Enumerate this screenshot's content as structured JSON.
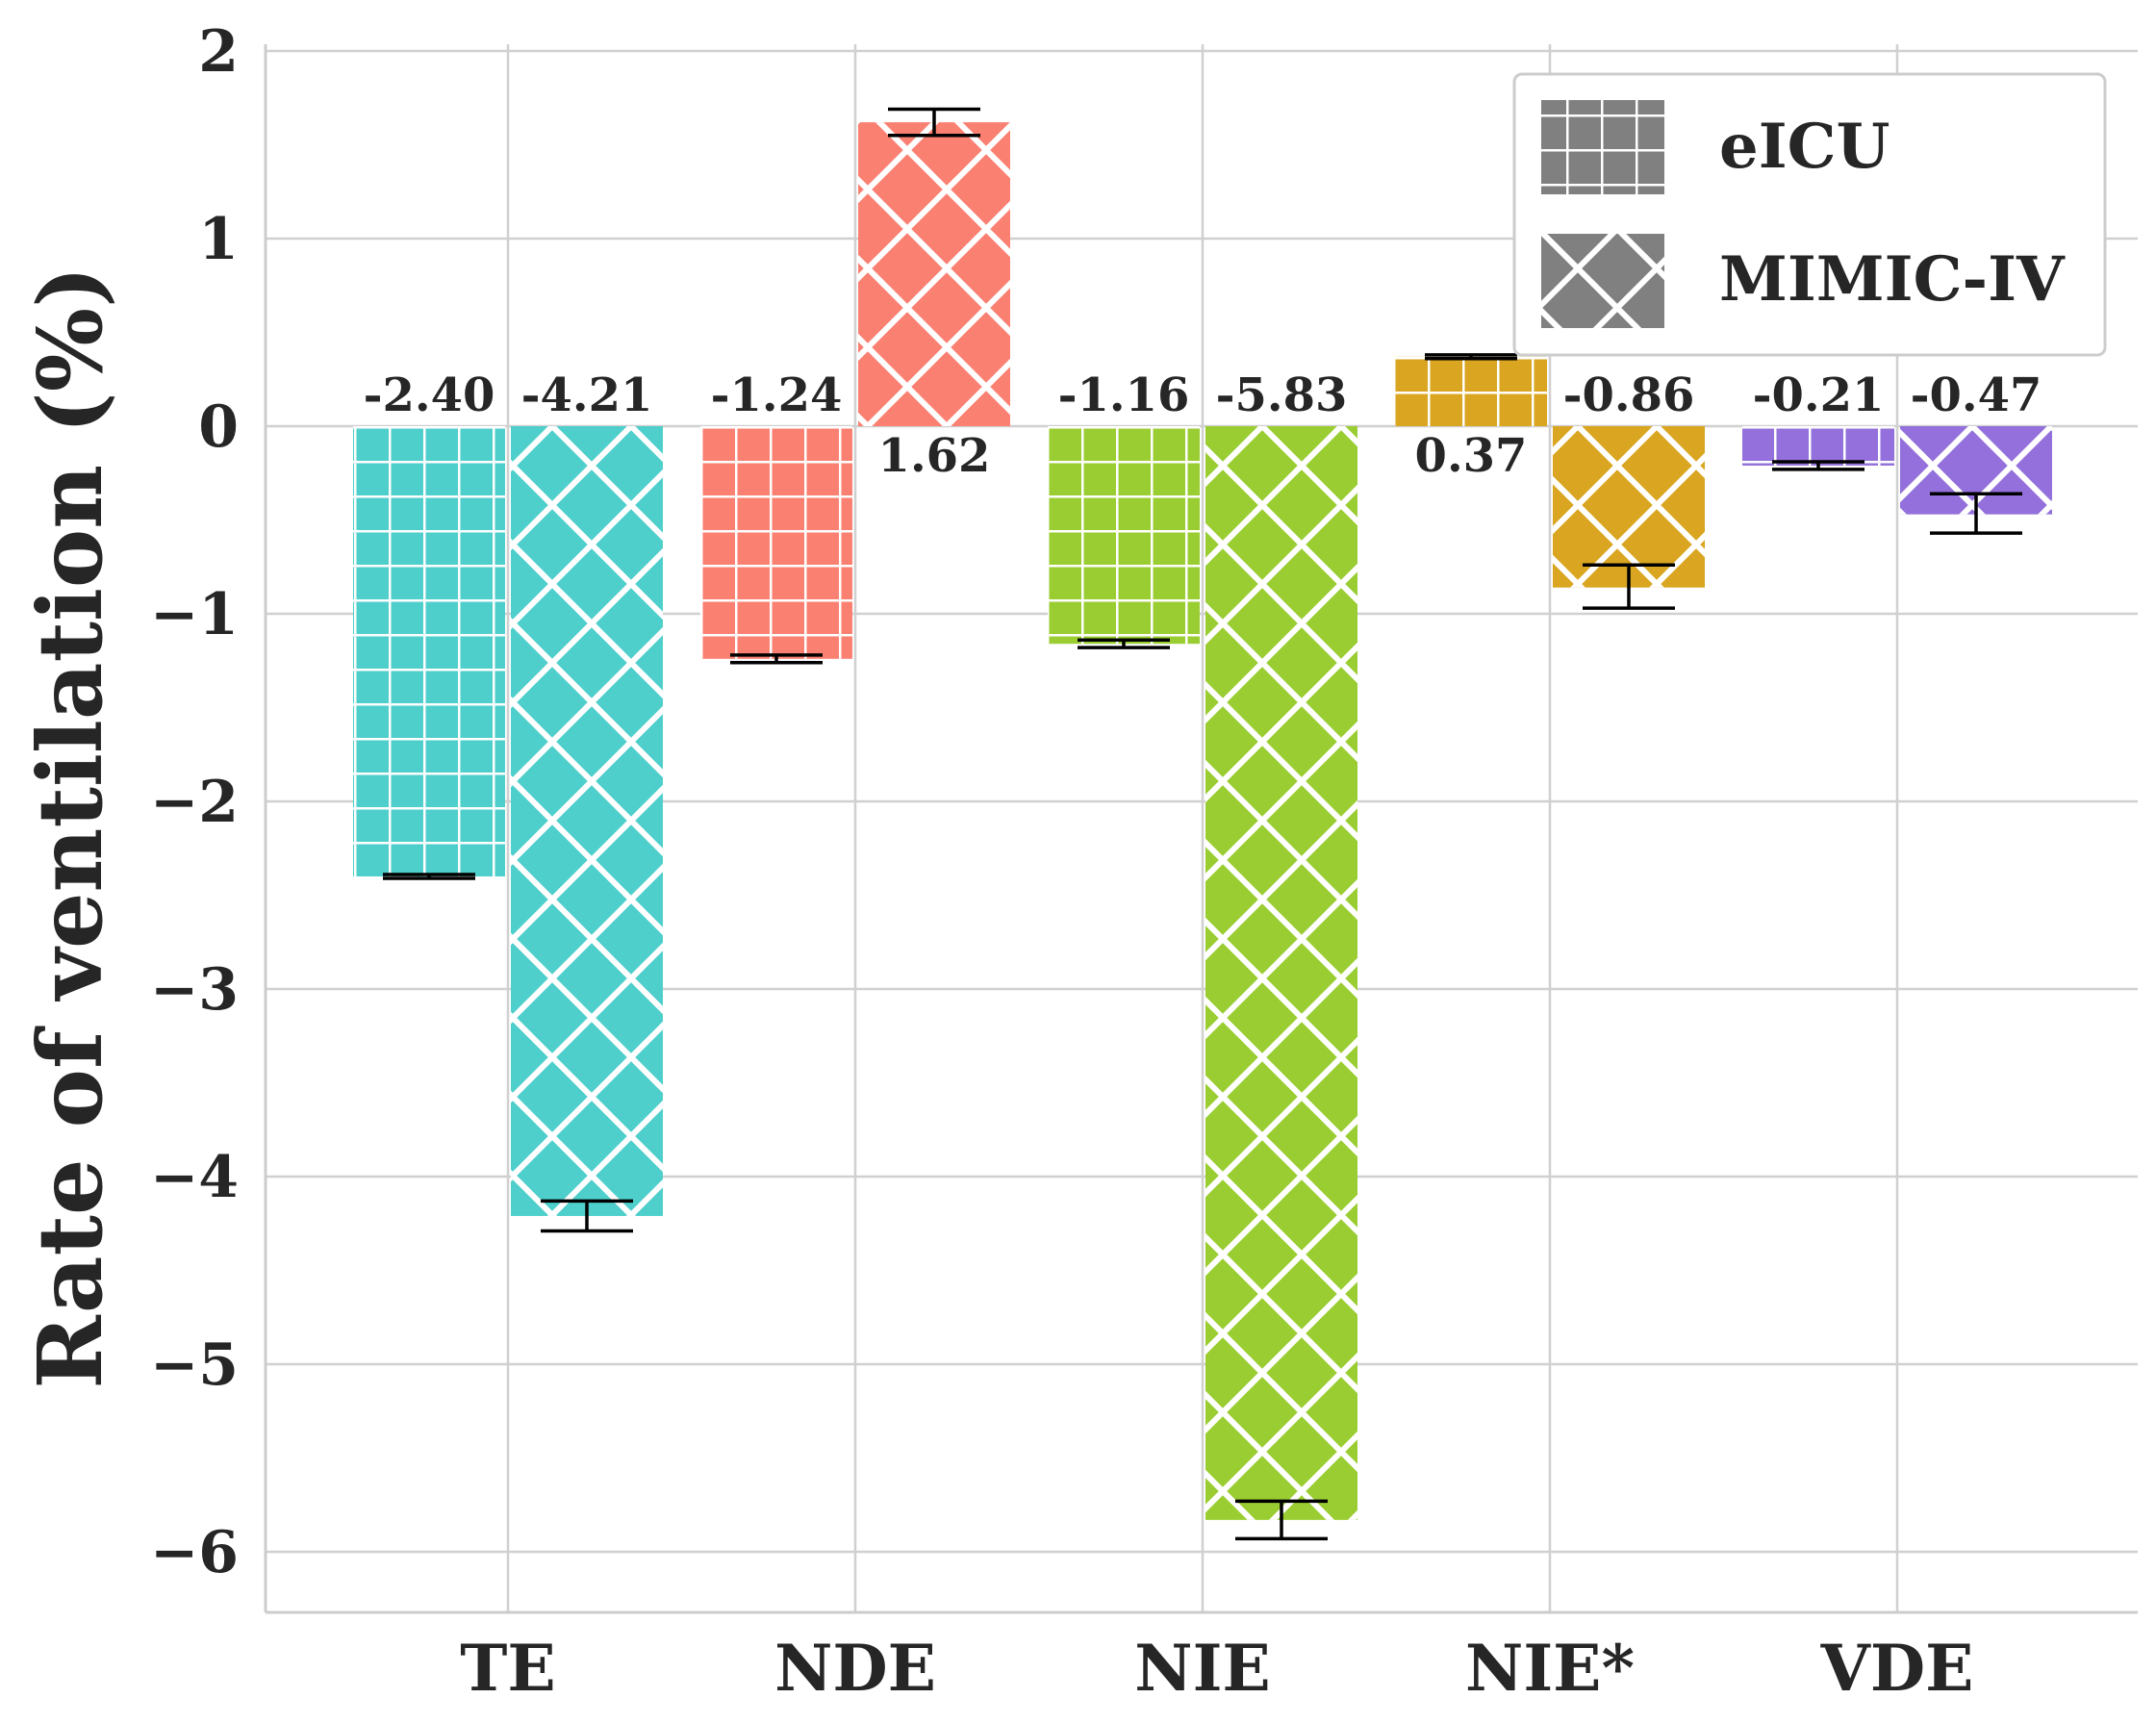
{
  "chart_data": {
    "type": "bar",
    "title": "",
    "xlabel": "",
    "ylabel": "Rate of ventilation (%)",
    "categories": [
      "TE",
      "NDE",
      "NIE",
      "NIE*",
      "VDE"
    ],
    "ylim": [
      -6.3,
      2.05
    ],
    "yticks": [
      2,
      1,
      0,
      -1,
      -2,
      -3,
      -4,
      -5,
      -6
    ],
    "ytick_labels": [
      "2",
      "1",
      "0",
      "−1",
      "−2",
      "−3",
      "−4",
      "−5",
      "−6"
    ],
    "grid": true,
    "legend_position": "top-right",
    "colors": [
      "#4ecfcb",
      "#fa8072",
      "#9acd32",
      "#daa520",
      "#9370db"
    ],
    "series": [
      {
        "name": "eICU",
        "hatch": "grid",
        "values": [
          -2.4,
          -1.24,
          -1.16,
          0.37,
          -0.21
        ],
        "labels": [
          "-2.40",
          "-1.24",
          "-1.16",
          "0.37",
          "-0.21"
        ],
        "err_low": [
          -2.41,
          -1.26,
          -1.18,
          0.36,
          -0.23
        ],
        "err_high": [
          -2.39,
          -1.22,
          -1.14,
          0.38,
          -0.19
        ]
      },
      {
        "name": "MIMIC-IV",
        "hatch": "diamond",
        "values": [
          -4.21,
          1.62,
          -5.83,
          -0.86,
          -0.47
        ],
        "labels": [
          "-4.21",
          "1.62",
          "-5.83",
          "-0.86",
          "-0.47"
        ],
        "err_low": [
          -4.29,
          1.55,
          -5.93,
          -0.97,
          -0.57
        ],
        "err_high": [
          -4.13,
          1.69,
          -5.73,
          -0.74,
          -0.36
        ]
      }
    ]
  }
}
